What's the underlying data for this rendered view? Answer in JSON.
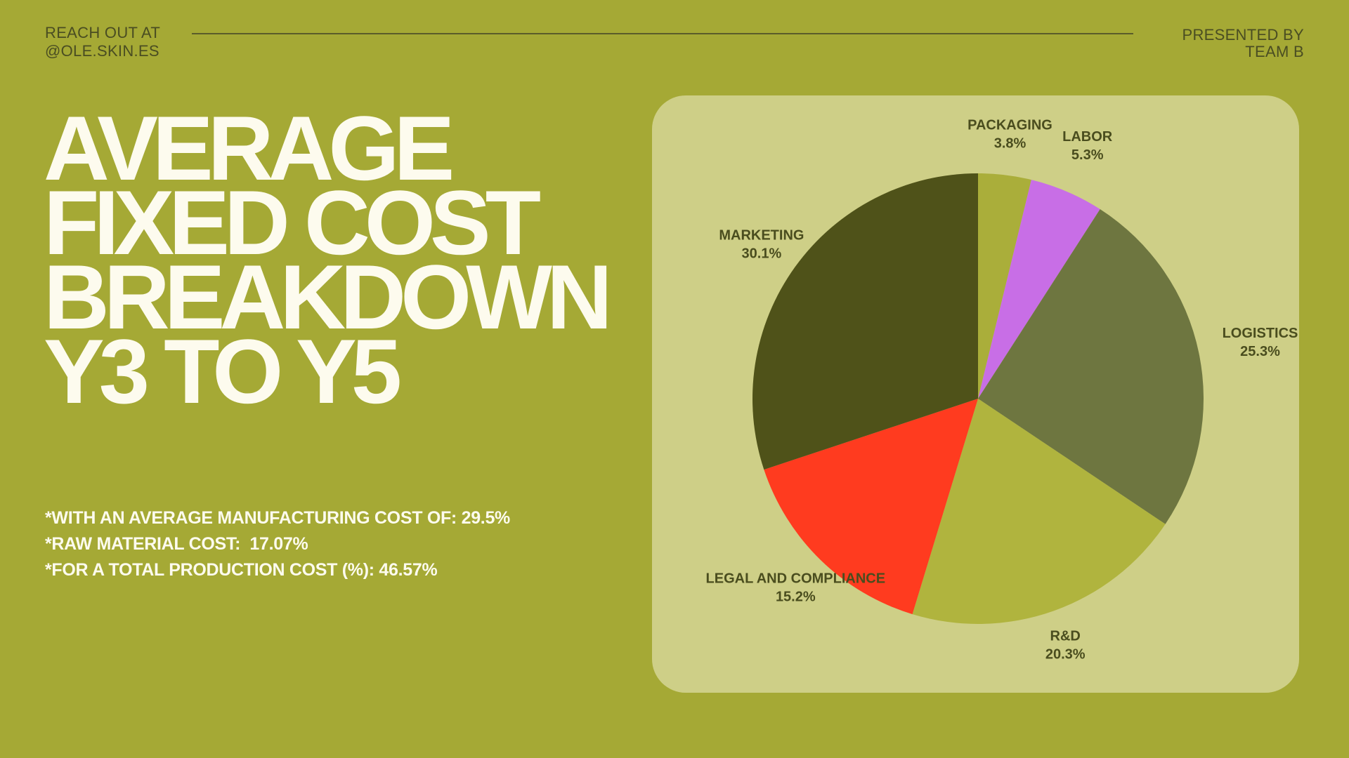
{
  "header": {
    "contact_line1": "REACH OUT AT",
    "contact_line2": "@OLE.SKIN.ES",
    "presenter_line1": "PRESENTED BY",
    "presenter_line2": "TEAM B"
  },
  "title": {
    "line1": "AVERAGE",
    "line2": "FIXED COST",
    "line3": "BREAKDOWN",
    "line4": "Y3 TO Y5"
  },
  "notes": [
    "*WITH AN AVERAGE MANUFACTURING COST OF: 29.5%",
    "*RAW MATERIAL COST:  17.07%",
    "*FOR A TOTAL PRODUCTION COST (%): 46.57%"
  ],
  "colors": {
    "background": "#a5a935",
    "card": "#cecf87",
    "title_text": "#fdfbee",
    "label_text": "#4a4d1e"
  },
  "chart_data": {
    "type": "pie",
    "start_angle": "12 o'clock",
    "direction": "clockwise",
    "categories": [
      "PACKAGING",
      "LABOR",
      "LOGISTICS",
      "R&D",
      "LEGAL AND COMPLIANCE",
      "MARKETING"
    ],
    "values": [
      3.8,
      5.3,
      25.3,
      20.3,
      15.2,
      30.1
    ],
    "value_labels": [
      "3.8%",
      "5.3%",
      "25.3%",
      "20.3%",
      "15.2%",
      "30.1%"
    ],
    "colors": [
      "#aaae3a",
      "#c86ee6",
      "#6e7640",
      "#b0b43e",
      "#ff3b1f",
      "#4f5219"
    ],
    "legend": "none (direct labels)"
  }
}
